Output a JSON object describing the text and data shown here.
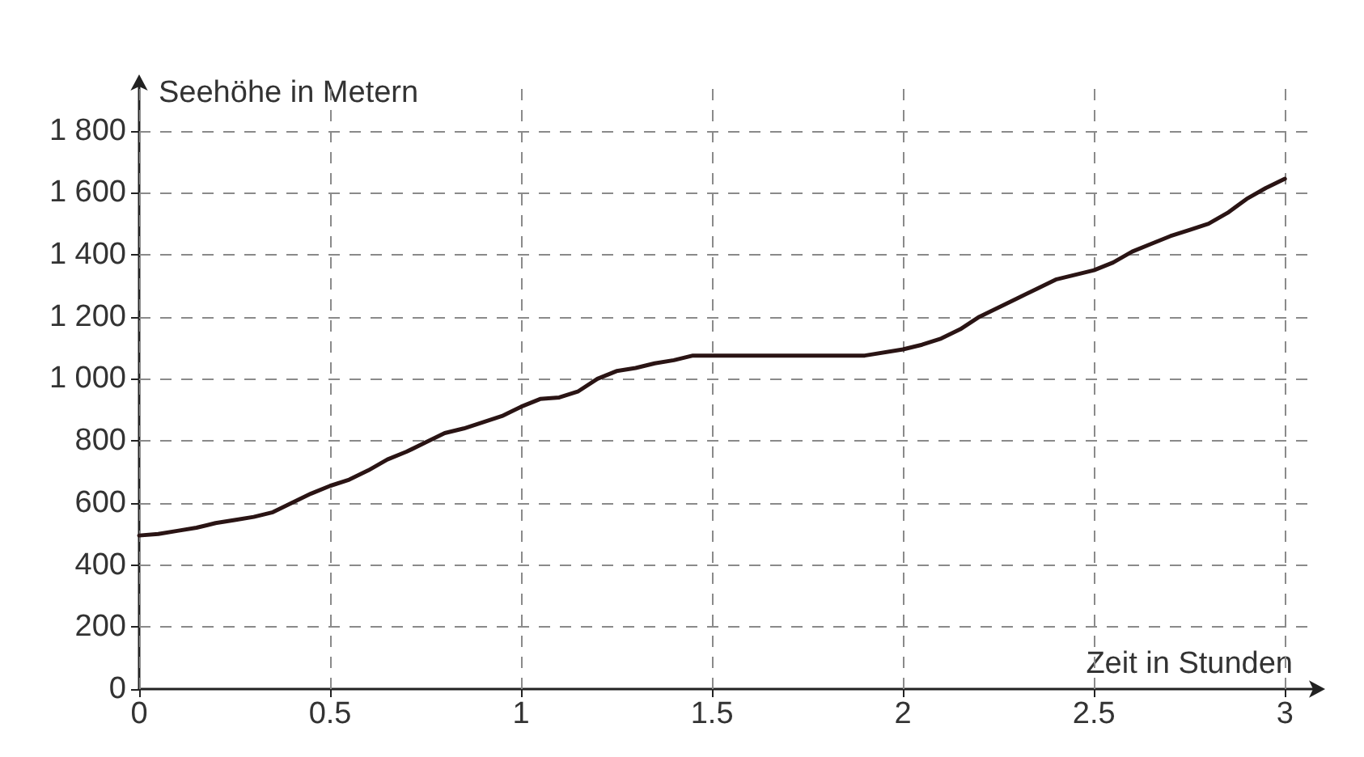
{
  "chart_data": {
    "type": "line",
    "xlabel": "Zeit in Stunden",
    "ylabel": "Seehöhe in Metern",
    "x": [
      0,
      0.05,
      0.1,
      0.15,
      0.2,
      0.25,
      0.3,
      0.35,
      0.4,
      0.45,
      0.5,
      0.55,
      0.6,
      0.65,
      0.7,
      0.75,
      0.8,
      0.85,
      0.9,
      0.95,
      1.0,
      1.05,
      1.1,
      1.15,
      1.2,
      1.25,
      1.3,
      1.35,
      1.4,
      1.45,
      1.5,
      1.9,
      2.0,
      2.05,
      2.1,
      2.15,
      2.2,
      2.25,
      2.3,
      2.35,
      2.4,
      2.45,
      2.5,
      2.55,
      2.6,
      2.65,
      2.7,
      2.75,
      2.8,
      2.85,
      2.9,
      2.95,
      3.0
    ],
    "series": [
      {
        "color": "#2a1414",
        "values": [
          495,
          500,
          510,
          520,
          535,
          545,
          555,
          570,
          600,
          630,
          655,
          675,
          705,
          740,
          765,
          795,
          825,
          840,
          860,
          880,
          910,
          935,
          940,
          960,
          1000,
          1025,
          1035,
          1050,
          1060,
          1075,
          1075,
          1075,
          1095,
          1110,
          1130,
          1160,
          1200,
          1230,
          1260,
          1290,
          1320,
          1335,
          1350,
          1375,
          1410,
          1435,
          1460,
          1480,
          1500,
          1535,
          1580,
          1615,
          1645
        ]
      }
    ],
    "xlim": [
      0,
      3.08
    ],
    "xticks": [
      0,
      0.5,
      1,
      1.5,
      2,
      2.5,
      3
    ],
    "ylim": [
      0,
      1950
    ],
    "yticks": [
      0,
      200,
      400,
      600,
      800,
      {
        "value": 1000,
        "label": "1 000"
      },
      {
        "value": 1200,
        "label": "1 200"
      },
      {
        "value": 1400,
        "label": "1 400"
      },
      {
        "value": 1600,
        "label": "1 600"
      },
      {
        "value": 1800,
        "label": "1 800"
      }
    ],
    "grid": true,
    "marker": "none",
    "line_style": "solid"
  }
}
